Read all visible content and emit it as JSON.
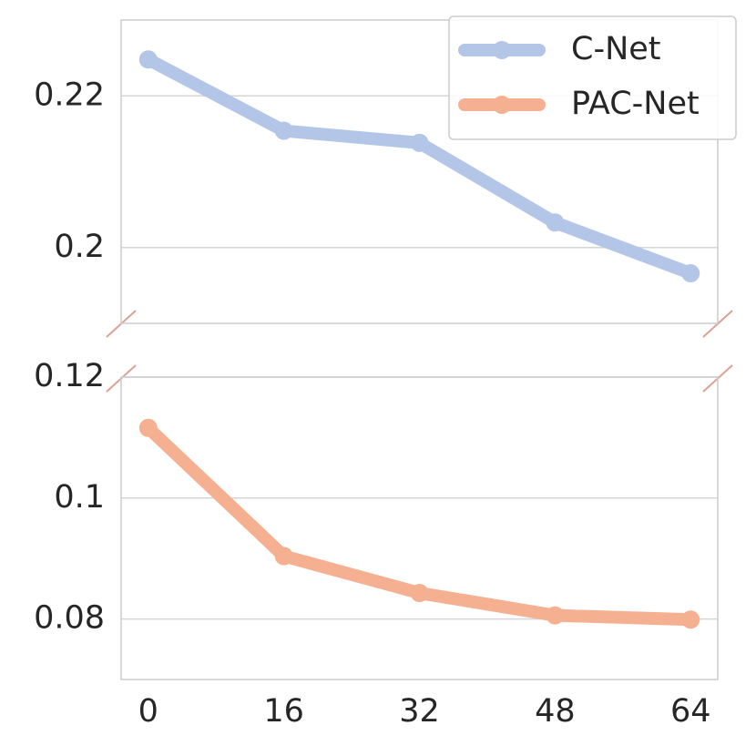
{
  "chart_data": [
    {
      "type": "line",
      "x": [
        0,
        16,
        32,
        48,
        64
      ],
      "series": [
        {
          "name": "C-Net",
          "color": "#b3c6e8",
          "values": [
            0.2248,
            0.2154,
            0.2138,
            0.2033,
            0.1966
          ]
        }
      ],
      "xlim": [
        -3.2,
        67.2
      ],
      "ylim": [
        0.19,
        0.23
      ],
      "yticks": [
        0.2,
        0.22
      ],
      "grid": true,
      "legend": "upper right"
    },
    {
      "type": "line",
      "x": [
        0,
        16,
        32,
        48,
        64
      ],
      "series": [
        {
          "name": "PAC-Net",
          "color": "#f5b091",
          "values": [
            0.1116,
            0.0904,
            0.0843,
            0.0806,
            0.0799
          ]
        }
      ],
      "xlim": [
        -3.2,
        67.2
      ],
      "xticks": [
        0,
        16,
        32,
        48,
        64
      ],
      "ylim": [
        0.07,
        0.12
      ],
      "yticks": [
        0.08,
        0.1,
        0.12
      ],
      "grid": true
    }
  ]
}
